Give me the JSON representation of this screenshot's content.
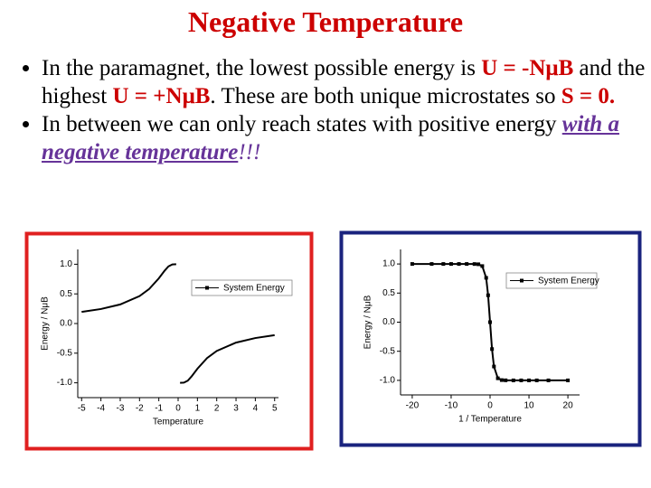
{
  "title": "Negative Temperature",
  "bullets": [
    {
      "runs": [
        "In the paramagnet, the lowest possible energy is ",
        "U = -NμB",
        " and the highest ",
        "U = +NμB",
        ". These are both unique microstates so ",
        "S = 0."
      ]
    },
    {
      "runs": [
        "In between we can only reach states with positive energy ",
        "with a negative temperature",
        "!!!"
      ]
    }
  ],
  "chart_data": [
    {
      "type": "line",
      "x_label": "Temperature",
      "y_label": "Energy / NμB",
      "x": [
        -5,
        -4,
        -3,
        -2,
        -1.5,
        -1,
        -0.7,
        -0.5,
        -0.3,
        -0.1,
        0,
        0.1,
        0.3,
        0.5,
        0.7,
        1,
        1.5,
        2,
        3,
        4,
        5
      ],
      "series": [
        {
          "name": "System Energy",
          "color": "#000000",
          "values": [
            0.197,
            0.245,
            0.322,
            0.462,
            0.583,
            0.762,
            0.891,
            0.964,
            0.997,
            1.0,
            null,
            -1.0,
            -0.997,
            -0.964,
            -0.891,
            -0.762,
            -0.583,
            -0.462,
            -0.322,
            -0.245,
            -0.197
          ]
        }
      ],
      "markers": false,
      "xlim": [
        -5.2,
        5.2
      ],
      "ylim": [
        -1.25,
        1.25
      ],
      "xticks": [
        -5,
        -4,
        -3,
        -2,
        -1,
        0,
        1,
        2,
        3,
        4,
        5
      ],
      "yticks": [
        {
          "value": -1,
          "label": "-1.0"
        },
        {
          "value": -0.5,
          "label": "-0.5"
        },
        {
          "value": 0,
          "label": "0.0"
        },
        {
          "value": 0.5,
          "label": "0.5"
        },
        {
          "value": 1,
          "label": "1.0"
        }
      ]
    },
    {
      "type": "line",
      "x_label": "1 / Temperature",
      "y_label": "Energy / NμB",
      "x": [
        -20,
        -15,
        -12,
        -10,
        -8,
        -6,
        -4,
        -3,
        -2,
        -1,
        -0.5,
        0,
        0.5,
        1,
        2,
        3,
        4,
        6,
        8,
        10,
        12,
        15,
        20
      ],
      "series": [
        {
          "name": "System Energy",
          "color": "#000000",
          "values": [
            1,
            1,
            1,
            1,
            1,
            1,
            0.999,
            0.995,
            0.964,
            0.762,
            0.462,
            0,
            -0.462,
            -0.762,
            -0.964,
            -0.995,
            -0.999,
            -1,
            -1,
            -1,
            -1,
            -1,
            -1
          ]
        }
      ],
      "markers": true,
      "xlim": [
        -23,
        23
      ],
      "ylim": [
        -1.25,
        1.25
      ],
      "xticks": [
        -20,
        -10,
        0,
        10,
        20
      ],
      "yticks": [
        {
          "value": -1,
          "label": "-1.0"
        },
        {
          "value": -0.5,
          "label": "-0.5"
        },
        {
          "value": 0,
          "label": "0.0"
        },
        {
          "value": 0.5,
          "label": "0.5"
        },
        {
          "value": 1,
          "label": "1.0"
        }
      ]
    }
  ]
}
